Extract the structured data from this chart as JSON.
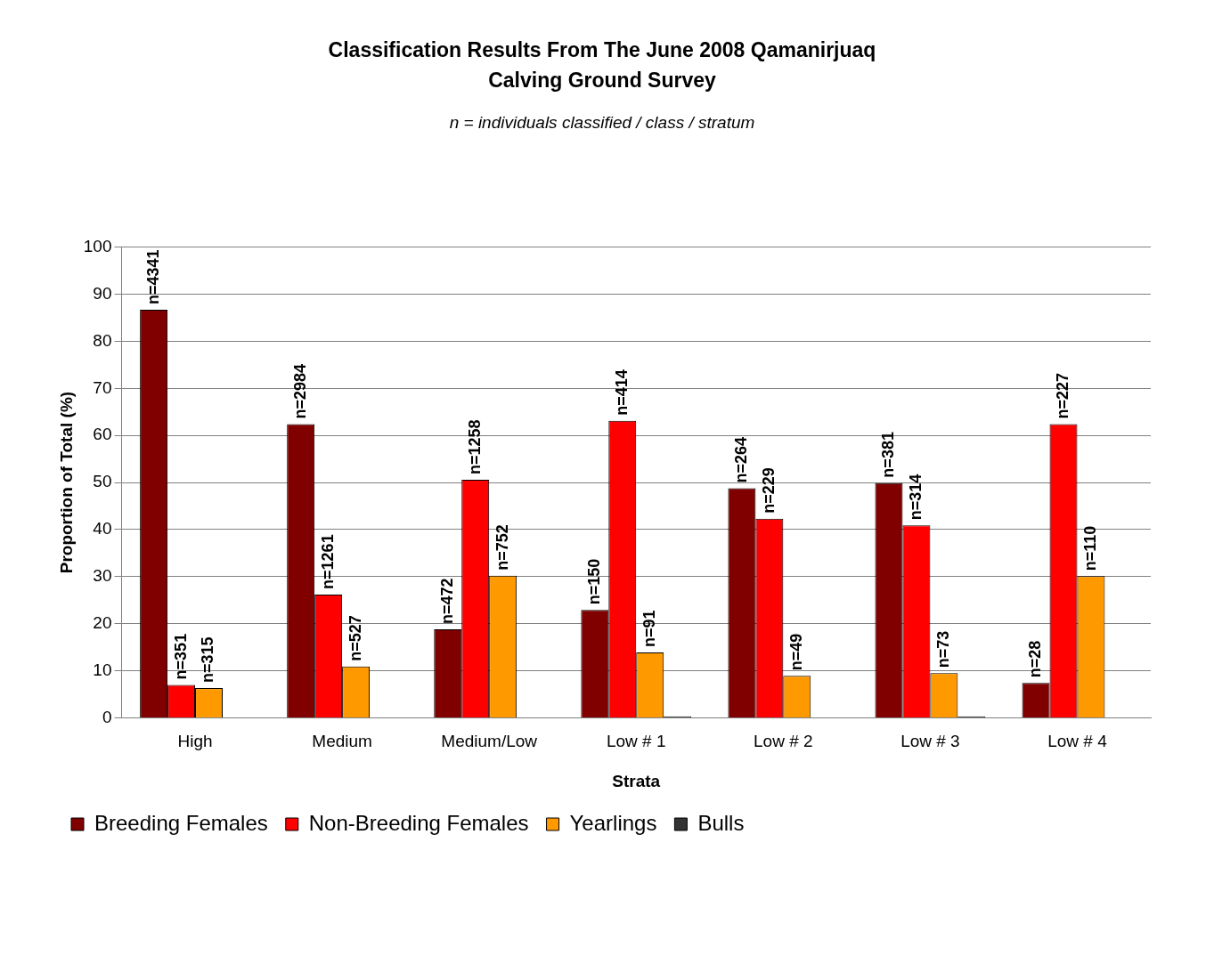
{
  "chart_data": {
    "type": "bar",
    "title": "Classification Results From The June 2008 Qamanirjuaq\nCalving Ground Survey",
    "subtitle": "n = individuals classified / class / stratum",
    "xlabel": "Strata",
    "ylabel": "Proportion of Total (%)",
    "categories": [
      "High",
      "Medium",
      "Medium/Low",
      "Low # 1",
      "Low # 2",
      "Low # 3",
      "Low # 4"
    ],
    "series": [
      {
        "name": "Breeding Females",
        "color": "#800000",
        "values": [
          86.7,
          62.4,
          18.8,
          22.9,
          48.8,
          49.9,
          7.4
        ]
      },
      {
        "name": "Non-Breeding Females",
        "color": "#ff0000",
        "values": [
          7.0,
          26.2,
          50.6,
          63.1,
          42.3,
          40.9,
          62.4
        ]
      },
      {
        "name": "Yearlings",
        "color": "#ff9900",
        "values": [
          6.3,
          10.9,
          30.2,
          13.9,
          8.9,
          9.5,
          30.1
        ]
      },
      {
        "name": "Bulls",
        "color": "#333333",
        "values": [
          null,
          null,
          null,
          0.3,
          null,
          0.3,
          null
        ]
      }
    ],
    "annotations": [
      "n=4341",
      "n=351",
      "n=315",
      "n=2984",
      "n=1261",
      "n=527",
      "n=472",
      "n=1258",
      "n=752",
      "n=150",
      "n=414",
      "n=91",
      "n=264",
      "n=229",
      "n=49",
      "n=381",
      "n=314",
      "n=73",
      "n=28",
      "n=227",
      "n=110"
    ],
    "ylim": [
      0,
      100
    ],
    "yticks": [
      0,
      10,
      20,
      30,
      40,
      50,
      60,
      70,
      80,
      90,
      100
    ],
    "grid": "y",
    "legend": "bottom"
  }
}
